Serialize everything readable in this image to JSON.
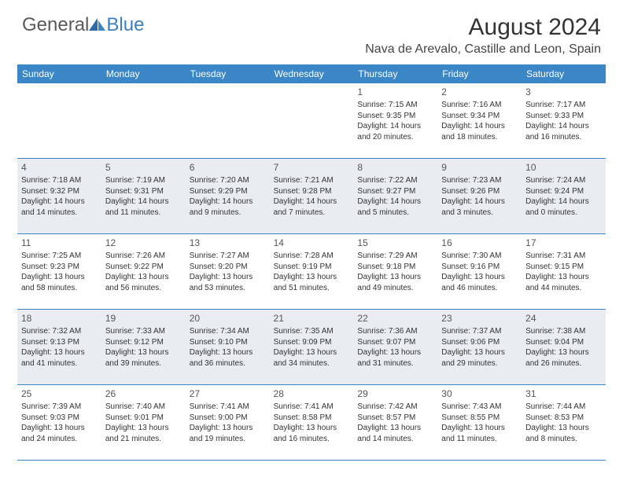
{
  "logo": {
    "general": "General",
    "blue": "Blue"
  },
  "title": "August 2024",
  "location": "Nava de Arevalo, Castille and Leon, Spain",
  "colors": {
    "header_bg": "#3b86c7",
    "border": "#3b7fc4",
    "shaded": "#e9edf1",
    "text": "#333333",
    "logo_gray": "#5a5a5a",
    "logo_blue": "#3b7fc4"
  },
  "weekdays": [
    "Sunday",
    "Monday",
    "Tuesday",
    "Wednesday",
    "Thursday",
    "Friday",
    "Saturday"
  ],
  "layout": {
    "first_day_column": 4,
    "days_in_month": 31
  },
  "days": [
    {
      "n": 1,
      "sunrise": "7:15 AM",
      "sunset": "9:35 PM",
      "daylight": "14 hours and 20 minutes."
    },
    {
      "n": 2,
      "sunrise": "7:16 AM",
      "sunset": "9:34 PM",
      "daylight": "14 hours and 18 minutes."
    },
    {
      "n": 3,
      "sunrise": "7:17 AM",
      "sunset": "9:33 PM",
      "daylight": "14 hours and 16 minutes."
    },
    {
      "n": 4,
      "sunrise": "7:18 AM",
      "sunset": "9:32 PM",
      "daylight": "14 hours and 14 minutes."
    },
    {
      "n": 5,
      "sunrise": "7:19 AM",
      "sunset": "9:31 PM",
      "daylight": "14 hours and 11 minutes."
    },
    {
      "n": 6,
      "sunrise": "7:20 AM",
      "sunset": "9:29 PM",
      "daylight": "14 hours and 9 minutes."
    },
    {
      "n": 7,
      "sunrise": "7:21 AM",
      "sunset": "9:28 PM",
      "daylight": "14 hours and 7 minutes."
    },
    {
      "n": 8,
      "sunrise": "7:22 AM",
      "sunset": "9:27 PM",
      "daylight": "14 hours and 5 minutes."
    },
    {
      "n": 9,
      "sunrise": "7:23 AM",
      "sunset": "9:26 PM",
      "daylight": "14 hours and 3 minutes."
    },
    {
      "n": 10,
      "sunrise": "7:24 AM",
      "sunset": "9:24 PM",
      "daylight": "14 hours and 0 minutes."
    },
    {
      "n": 11,
      "sunrise": "7:25 AM",
      "sunset": "9:23 PM",
      "daylight": "13 hours and 58 minutes."
    },
    {
      "n": 12,
      "sunrise": "7:26 AM",
      "sunset": "9:22 PM",
      "daylight": "13 hours and 56 minutes."
    },
    {
      "n": 13,
      "sunrise": "7:27 AM",
      "sunset": "9:20 PM",
      "daylight": "13 hours and 53 minutes."
    },
    {
      "n": 14,
      "sunrise": "7:28 AM",
      "sunset": "9:19 PM",
      "daylight": "13 hours and 51 minutes."
    },
    {
      "n": 15,
      "sunrise": "7:29 AM",
      "sunset": "9:18 PM",
      "daylight": "13 hours and 49 minutes."
    },
    {
      "n": 16,
      "sunrise": "7:30 AM",
      "sunset": "9:16 PM",
      "daylight": "13 hours and 46 minutes."
    },
    {
      "n": 17,
      "sunrise": "7:31 AM",
      "sunset": "9:15 PM",
      "daylight": "13 hours and 44 minutes."
    },
    {
      "n": 18,
      "sunrise": "7:32 AM",
      "sunset": "9:13 PM",
      "daylight": "13 hours and 41 minutes."
    },
    {
      "n": 19,
      "sunrise": "7:33 AM",
      "sunset": "9:12 PM",
      "daylight": "13 hours and 39 minutes."
    },
    {
      "n": 20,
      "sunrise": "7:34 AM",
      "sunset": "9:10 PM",
      "daylight": "13 hours and 36 minutes."
    },
    {
      "n": 21,
      "sunrise": "7:35 AM",
      "sunset": "9:09 PM",
      "daylight": "13 hours and 34 minutes."
    },
    {
      "n": 22,
      "sunrise": "7:36 AM",
      "sunset": "9:07 PM",
      "daylight": "13 hours and 31 minutes."
    },
    {
      "n": 23,
      "sunrise": "7:37 AM",
      "sunset": "9:06 PM",
      "daylight": "13 hours and 29 minutes."
    },
    {
      "n": 24,
      "sunrise": "7:38 AM",
      "sunset": "9:04 PM",
      "daylight": "13 hours and 26 minutes."
    },
    {
      "n": 25,
      "sunrise": "7:39 AM",
      "sunset": "9:03 PM",
      "daylight": "13 hours and 24 minutes."
    },
    {
      "n": 26,
      "sunrise": "7:40 AM",
      "sunset": "9:01 PM",
      "daylight": "13 hours and 21 minutes."
    },
    {
      "n": 27,
      "sunrise": "7:41 AM",
      "sunset": "9:00 PM",
      "daylight": "13 hours and 19 minutes."
    },
    {
      "n": 28,
      "sunrise": "7:41 AM",
      "sunset": "8:58 PM",
      "daylight": "13 hours and 16 minutes."
    },
    {
      "n": 29,
      "sunrise": "7:42 AM",
      "sunset": "8:57 PM",
      "daylight": "13 hours and 14 minutes."
    },
    {
      "n": 30,
      "sunrise": "7:43 AM",
      "sunset": "8:55 PM",
      "daylight": "13 hours and 11 minutes."
    },
    {
      "n": 31,
      "sunrise": "7:44 AM",
      "sunset": "8:53 PM",
      "daylight": "13 hours and 8 minutes."
    }
  ]
}
